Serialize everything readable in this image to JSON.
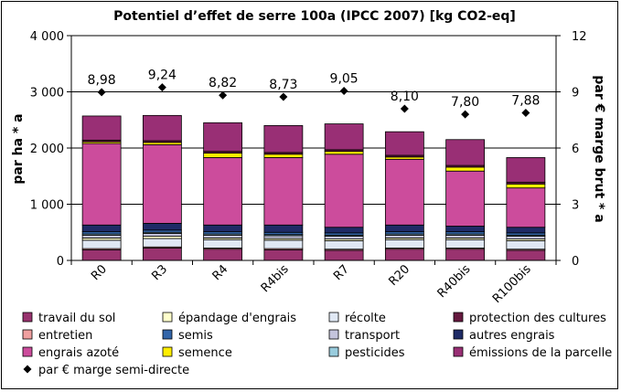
{
  "chart_data": {
    "type": "bar",
    "stacked": true,
    "title": "Potentiel d’effet de serre 100a (IPCC 2007) [kg CO2-eq]",
    "ylabel": "par ha * a",
    "y2label": "par € marge brut * a",
    "ylim": [
      0,
      4000
    ],
    "y2lim": [
      0,
      12
    ],
    "yticks": [
      "0",
      "1 000",
      "2 000",
      "3 000",
      "4 000"
    ],
    "y2ticks": [
      "0",
      "3",
      "6",
      "9",
      "12"
    ],
    "grid": true,
    "legend_position": "bottom",
    "categories": [
      "R0",
      "R3",
      "R4",
      "R4bis",
      "R7",
      "R20",
      "R40bis",
      "R100bis"
    ],
    "series": [
      {
        "name": "travail du sol",
        "color": "#99336f",
        "values": [
          190,
          220,
          200,
          190,
          180,
          200,
          200,
          180
        ]
      },
      {
        "name": "entretien",
        "color": "#f0a0a0",
        "values": [
          20,
          20,
          20,
          20,
          20,
          20,
          20,
          20
        ]
      },
      {
        "name": "engrais azoté",
        "color": "#cc4c9c",
        "values": [
          1450,
          1400,
          1200,
          1200,
          1300,
          1170,
          980,
          700
        ]
      },
      {
        "name": "épandage d'engrais",
        "color": "#ffffcc",
        "values": [
          40,
          40,
          30,
          30,
          30,
          30,
          30,
          30
        ]
      },
      {
        "name": "semis",
        "color": "#3366aa",
        "values": [
          40,
          40,
          40,
          40,
          40,
          40,
          40,
          40
        ]
      },
      {
        "name": "semence",
        "color": "#ffee00",
        "values": [
          30,
          40,
          80,
          60,
          50,
          40,
          70,
          70
        ]
      },
      {
        "name": "récolte",
        "color": "#e0e8f4",
        "values": [
          150,
          150,
          150,
          150,
          150,
          150,
          150,
          150
        ]
      },
      {
        "name": "transport",
        "color": "#c4c4dc",
        "values": [
          50,
          50,
          50,
          50,
          50,
          50,
          50,
          50
        ]
      },
      {
        "name": "pesticides",
        "color": "#99ccdd",
        "values": [
          20,
          20,
          20,
          20,
          20,
          20,
          20,
          20
        ]
      },
      {
        "name": "protection des cultures",
        "color": "#66193f",
        "values": [
          30,
          30,
          30,
          30,
          30,
          30,
          30,
          30
        ]
      },
      {
        "name": "autres engrais",
        "color": "#1f2b66",
        "values": [
          120,
          120,
          120,
          130,
          100,
          120,
          100,
          100
        ]
      },
      {
        "name": "émissions de la parcelle",
        "color": "#992f75",
        "values": [
          430,
          450,
          510,
          480,
          460,
          420,
          460,
          440
        ]
      }
    ],
    "stack_order": [
      "travail du sol",
      "entretien",
      "récolte",
      "épandage d'engrais",
      "transport",
      "pesticides",
      "semis",
      "autres engrais",
      "engrais azoté",
      "semence",
      "protection des cultures",
      "émissions de la parcelle"
    ],
    "line_series": {
      "name": "par € marge semi-directe",
      "axis": "right",
      "marker": "diamond",
      "values": [
        8.98,
        9.24,
        8.82,
        8.73,
        9.05,
        8.1,
        7.8,
        7.88
      ],
      "labels": [
        "8,98",
        "9,24",
        "8,82",
        "8,73",
        "9,05",
        "8,10",
        "7,80",
        "7,88"
      ]
    },
    "legend_rows": [
      [
        "travail du sol",
        "épandage d'engrais",
        "récolte",
        "protection des cultures"
      ],
      [
        "entretien",
        "semis",
        "transport",
        "autres engrais"
      ],
      [
        "engrais azoté",
        "semence",
        "pesticides",
        "émissions de la parcelle"
      ],
      [
        "par € marge semi-directe"
      ]
    ]
  }
}
